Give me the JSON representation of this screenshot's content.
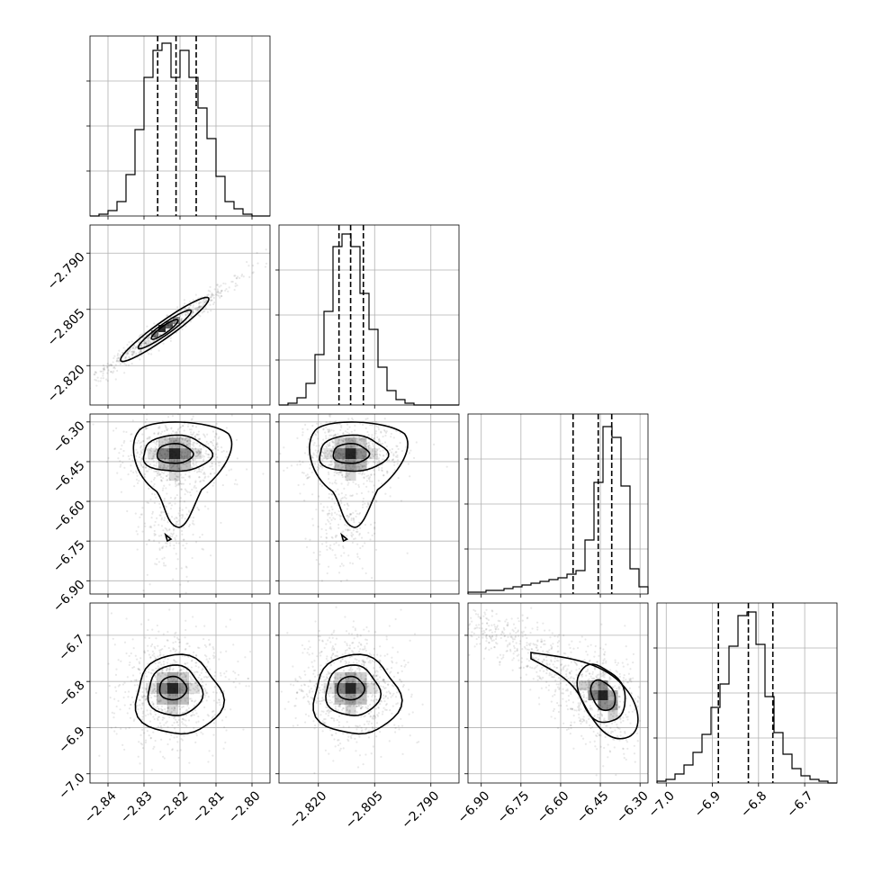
{
  "chart_data": {
    "type": "corner",
    "n_params": 4,
    "grid": true,
    "params": [
      {
        "range": [
          -2.845,
          -2.795
        ],
        "ticks": [
          -2.84,
          -2.83,
          -2.82,
          -2.81,
          -2.8
        ],
        "tick_labels": [
          "−2.84",
          "−2.83",
          "−2.82",
          "−2.81",
          "−2.80"
        ]
      },
      {
        "range": [
          -2.8305,
          -2.7825
        ],
        "ticks": [
          -2.82,
          -2.805,
          -2.79
        ],
        "tick_labels": [
          "−2.820",
          "−2.805",
          "−2.790"
        ]
      },
      {
        "range": [
          -6.95,
          -6.27
        ],
        "ticks": [
          -6.9,
          -6.75,
          -6.6,
          -6.45,
          -6.3
        ],
        "tick_labels": [
          "−6.90",
          "−6.75",
          "−6.60",
          "−6.45",
          "−6.30"
        ]
      },
      {
        "range": [
          -7.02,
          -6.63
        ],
        "ticks": [
          -7.0,
          -6.9,
          -6.8,
          -6.7
        ],
        "tick_labels": [
          "−7.0",
          "−6.9",
          "−6.8",
          "−6.7"
        ]
      }
    ],
    "diagonal_histograms": [
      {
        "bin_start": -2.845,
        "bin_width": 0.0025,
        "counts": [
          0,
          0.01,
          0.03,
          0.08,
          0.23,
          0.48,
          0.77,
          0.92,
          0.96,
          0.77,
          0.92,
          0.77,
          0.6,
          0.43,
          0.22,
          0.08,
          0.04,
          0.01,
          0,
          0
        ],
        "quantiles": [
          -2.8262,
          -2.8211,
          -2.8155
        ]
      },
      {
        "bin_start": -2.8305,
        "bin_width": 0.0024,
        "counts": [
          0,
          0.01,
          0.04,
          0.12,
          0.28,
          0.52,
          0.88,
          0.95,
          0.88,
          0.62,
          0.42,
          0.21,
          0.08,
          0.03,
          0.01,
          0,
          0,
          0,
          0,
          0
        ],
        "quantiles": [
          -2.8145,
          -2.8114,
          -2.808
        ]
      },
      {
        "bin_start": -6.95,
        "bin_width": 0.034,
        "counts": [
          0.01,
          0.01,
          0.02,
          0.02,
          0.03,
          0.04,
          0.05,
          0.06,
          0.07,
          0.08,
          0.09,
          0.11,
          0.13,
          0.3,
          0.62,
          0.93,
          0.87,
          0.6,
          0.14,
          0.04
        ],
        "quantiles": [
          -6.553,
          -6.458,
          -6.407
        ]
      },
      {
        "bin_start": -7.02,
        "bin_width": 0.0195,
        "counts": [
          0.01,
          0.02,
          0.05,
          0.1,
          0.17,
          0.27,
          0.42,
          0.55,
          0.76,
          0.93,
          0.95,
          0.77,
          0.48,
          0.28,
          0.16,
          0.08,
          0.04,
          0.02,
          0.01,
          0
        ],
        "quantiles": [
          -6.887,
          -6.822,
          -6.769
        ]
      }
    ],
    "pair_modes": [
      {
        "x_param": 0,
        "y_param": 1,
        "center": [
          -2.8215,
          -2.8105
        ],
        "notes": "strong positive correlation"
      },
      {
        "x_param": 0,
        "y_param": 2,
        "center": [
          -2.8215,
          -6.42
        ]
      },
      {
        "x_param": 1,
        "y_param": 2,
        "center": [
          -2.8114,
          -6.42
        ]
      },
      {
        "x_param": 0,
        "y_param": 3,
        "center": [
          -2.822,
          -6.815
        ]
      },
      {
        "x_param": 1,
        "y_param": 3,
        "center": [
          -2.8114,
          -6.815
        ]
      },
      {
        "x_param": 2,
        "y_param": 3,
        "center": [
          -6.44,
          -6.83
        ],
        "notes": "curved anti-correlated banana"
      }
    ]
  }
}
